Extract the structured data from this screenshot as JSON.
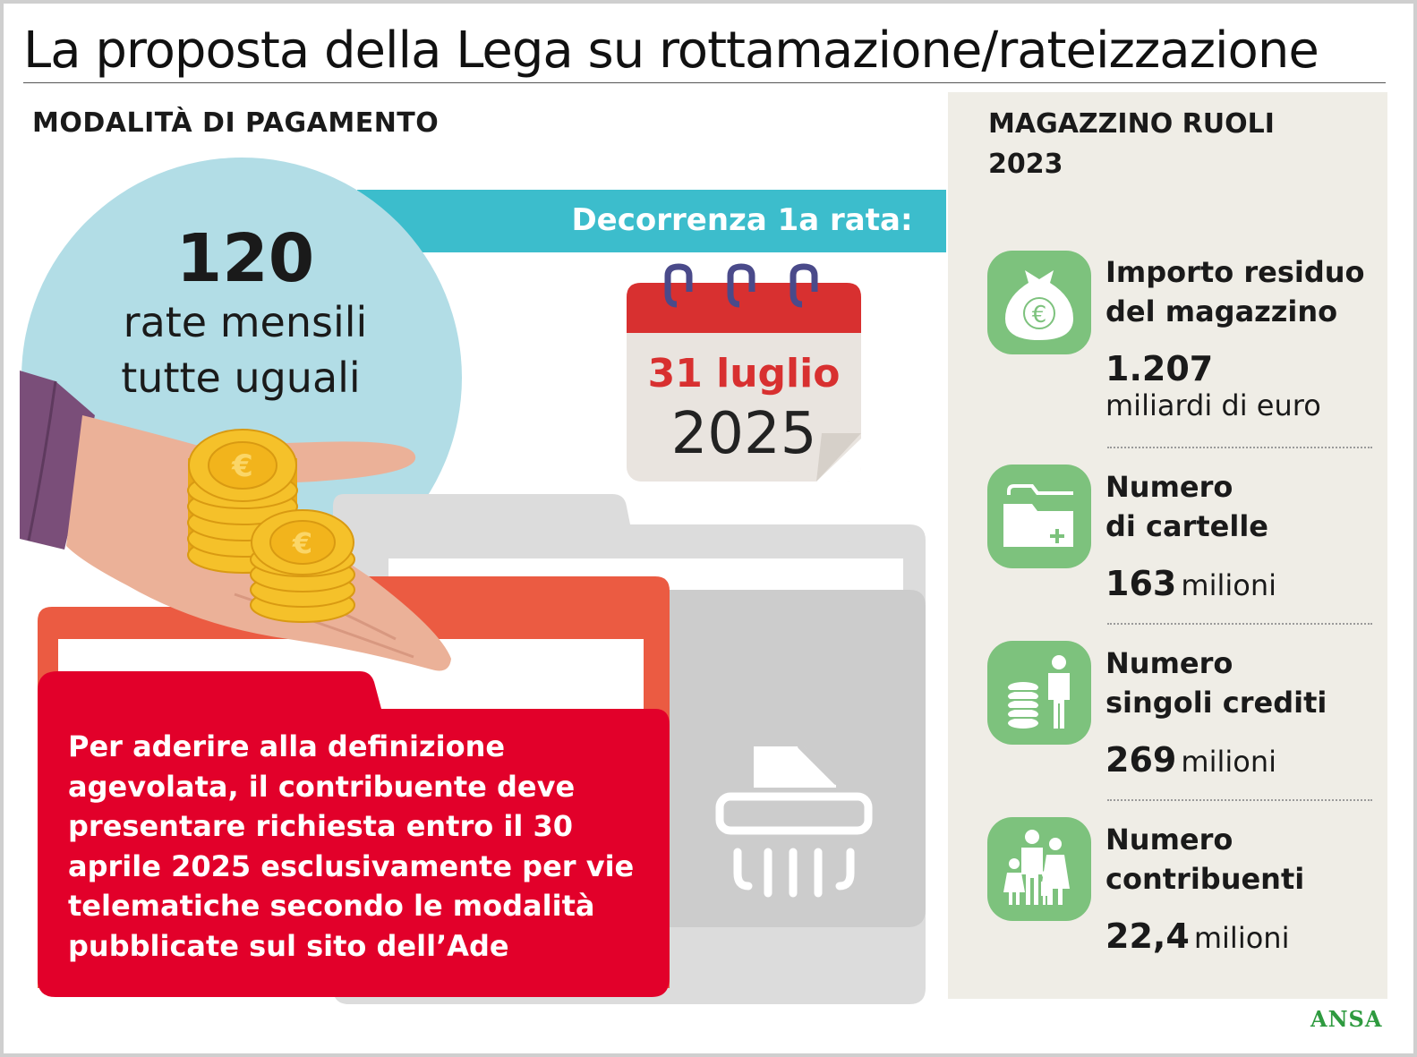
{
  "title": "La proposta della Lega su rottamazione/rateizzazione",
  "left_section": {
    "heading": "MODALITÀ DI PAGAMENTO",
    "rate": {
      "number": "120",
      "line1": "rate mensili",
      "line2": "tutte uguali"
    },
    "decorrenza_label": "Decorrenza 1a rata:",
    "calendar": {
      "day": "31 luglio",
      "year": "2025"
    },
    "info_text": [
      "Per aderire alla definizione",
      "agevolata, il contribuente deve",
      "presentare richiesta entro il 30",
      "aprile 2025 esclusivamente per vie",
      "telematiche secondo le modalità",
      "pubblicate sul sito dell’Ade"
    ]
  },
  "right_section": {
    "heading_line1": "MAGAZZINO RUOLI",
    "heading_line2": "2023",
    "stats": [
      {
        "icon": "money-bag-euro-icon",
        "label_line1": "Importo residuo",
        "label_line2": "del magazzino",
        "value": "1.207",
        "unit": "miliardi di euro"
      },
      {
        "icon": "folder-plus-icon",
        "label_line1": "Numero",
        "label_line2": "di cartelle",
        "value": "163",
        "unit": "milioni"
      },
      {
        "icon": "coins-person-icon",
        "label_line1": "Numero",
        "label_line2": "singoli crediti",
        "value": "269",
        "unit": "milioni"
      },
      {
        "icon": "family-icon",
        "label_line1": "Numero",
        "label_line2": "contribuenti",
        "value": "22,4",
        "unit": "milioni"
      }
    ]
  },
  "colors": {
    "circle": "#b2dde6",
    "teal_bar": "#3cbdcc",
    "red_folder": "#e2002a",
    "orange_folder": "#eb5b42",
    "grey_folder": "#d3d3d3",
    "icon_green": "#7dc27d",
    "right_panel": "#efede6",
    "calendar_red": "#d83030",
    "ansa_green": "#2e9a3f"
  },
  "credit": "ANSA"
}
